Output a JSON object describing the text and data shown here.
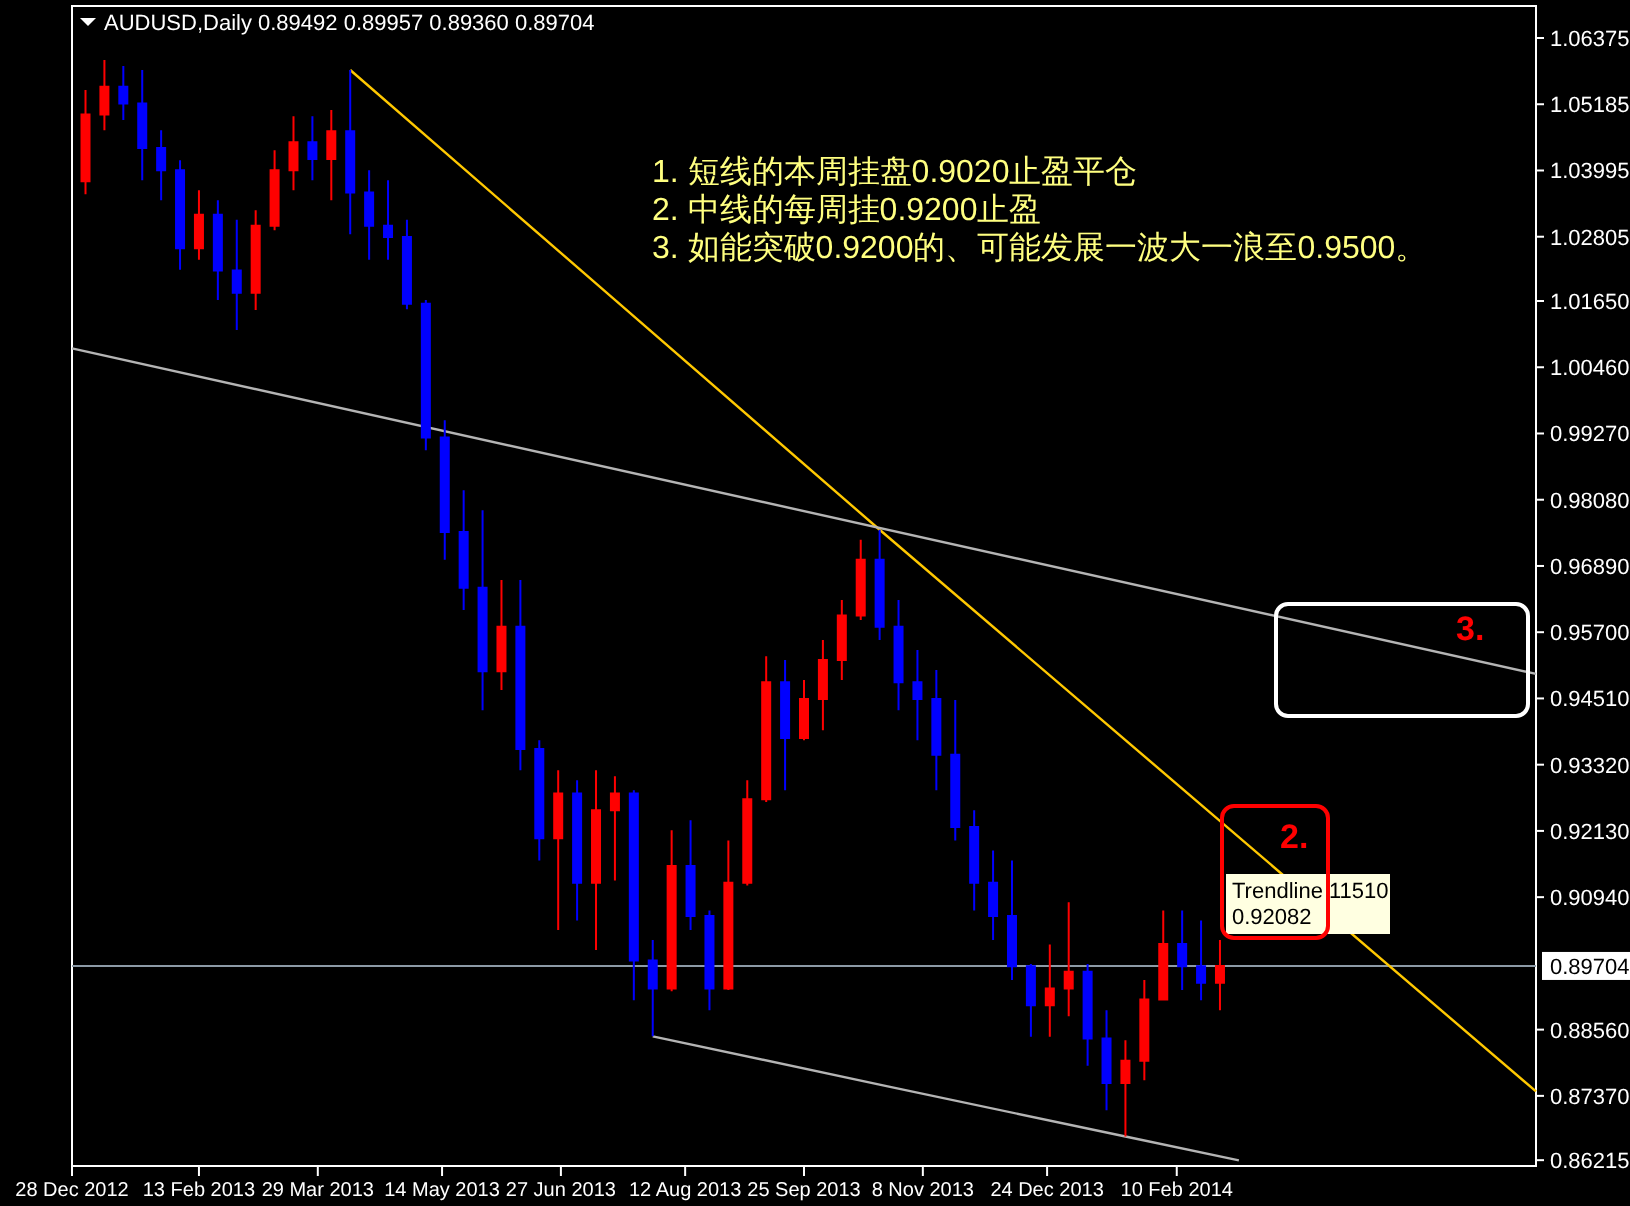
{
  "chart_data": {
    "type": "candlestick",
    "title": "AUDUSD,Daily  0.89492 0.89957 0.89360 0.89704",
    "x": [
      "2013-01-02",
      "2013-01-09",
      "2013-01-16",
      "2013-01-23",
      "2013-01-30",
      "2013-02-06",
      "2013-02-13",
      "2013-02-20",
      "2013-02-27",
      "2013-03-06",
      "2013-03-13",
      "2013-03-20",
      "2013-03-27",
      "2013-04-03",
      "2013-04-10",
      "2013-04-17",
      "2013-04-24",
      "2013-05-01",
      "2013-05-08",
      "2013-05-15",
      "2013-05-22",
      "2013-05-29",
      "2013-06-05",
      "2013-06-12",
      "2013-06-19",
      "2013-06-26",
      "2013-07-03",
      "2013-07-10",
      "2013-07-17",
      "2013-07-24",
      "2013-07-31",
      "2013-08-07",
      "2013-08-14",
      "2013-08-21",
      "2013-08-28",
      "2013-09-04",
      "2013-09-11",
      "2013-09-18",
      "2013-09-25",
      "2013-10-02",
      "2013-10-09",
      "2013-10-16",
      "2013-10-23",
      "2013-10-30",
      "2013-11-06",
      "2013-11-13",
      "2013-11-20",
      "2013-11-27",
      "2013-12-04",
      "2013-12-11",
      "2013-12-18",
      "2013-12-25",
      "2014-01-01",
      "2014-01-08",
      "2014-01-15",
      "2014-01-22",
      "2014-01-29",
      "2014-02-05",
      "2014-02-12",
      "2014-02-19",
      "2014-02-26"
    ],
    "ohlc": [
      [
        1.038,
        1.0544,
        1.0357,
        1.05
      ],
      [
        1.05,
        1.0598,
        1.0472,
        1.055
      ],
      [
        1.055,
        1.0587,
        1.049,
        1.052
      ],
      [
        1.052,
        1.058,
        1.0382,
        1.044
      ],
      [
        1.044,
        1.0472,
        1.0346,
        1.04
      ],
      [
        1.04,
        1.0418,
        1.0221,
        1.026
      ],
      [
        1.026,
        1.0364,
        1.0239,
        1.032
      ],
      [
        1.032,
        1.0346,
        1.0167,
        1.022
      ],
      [
        1.022,
        1.0311,
        1.0113,
        1.018
      ],
      [
        1.018,
        1.0328,
        1.0149,
        1.03
      ],
      [
        1.03,
        1.0436,
        1.0292,
        1.04
      ],
      [
        1.04,
        1.0497,
        1.0364,
        1.045
      ],
      [
        1.045,
        1.0497,
        1.0382,
        1.042
      ],
      [
        1.042,
        1.0508,
        1.0346,
        1.047
      ],
      [
        1.047,
        1.058,
        1.0285,
        1.036
      ],
      [
        1.036,
        1.04,
        1.0239,
        1.03
      ],
      [
        1.03,
        1.0382,
        1.0239,
        1.028
      ],
      [
        1.028,
        1.0311,
        1.015,
        1.016
      ],
      [
        1.016,
        1.0167,
        0.9897,
        0.992
      ],
      [
        0.992,
        0.9951,
        0.97,
        0.975
      ],
      [
        0.975,
        0.9825,
        0.961,
        0.965
      ],
      [
        0.965,
        0.9789,
        0.943,
        0.95
      ],
      [
        0.95,
        0.9664,
        0.9466,
        0.958
      ],
      [
        0.958,
        0.9664,
        0.9322,
        0.936
      ],
      [
        0.936,
        0.9376,
        0.916,
        0.92
      ],
      [
        0.92,
        0.9322,
        0.9035,
        0.928
      ],
      [
        0.928,
        0.9304,
        0.9052,
        0.912
      ],
      [
        0.912,
        0.9322,
        0.8999,
        0.925
      ],
      [
        0.925,
        0.9311,
        0.9124,
        0.928
      ],
      [
        0.928,
        0.9286,
        0.8909,
        0.898
      ],
      [
        0.898,
        0.9017,
        0.8844,
        0.893
      ],
      [
        0.893,
        0.9214,
        0.8925,
        0.915
      ],
      [
        0.915,
        0.9232,
        0.9035,
        0.906
      ],
      [
        0.906,
        0.907,
        0.8891,
        0.893
      ],
      [
        0.893,
        0.9196,
        0.8927,
        0.912
      ],
      [
        0.912,
        0.9304,
        0.9115,
        0.927
      ],
      [
        0.927,
        0.9527,
        0.9265,
        0.948
      ],
      [
        0.948,
        0.952,
        0.9286,
        0.938
      ],
      [
        0.938,
        0.9484,
        0.9376,
        0.945
      ],
      [
        0.945,
        0.9556,
        0.9394,
        0.952
      ],
      [
        0.952,
        0.9628,
        0.9484,
        0.96
      ],
      [
        0.96,
        0.9736,
        0.9592,
        0.97
      ],
      [
        0.97,
        0.9754,
        0.9556,
        0.958
      ],
      [
        0.958,
        0.9628,
        0.943,
        0.948
      ],
      [
        0.948,
        0.9538,
        0.9376,
        0.945
      ],
      [
        0.945,
        0.9502,
        0.9286,
        0.935
      ],
      [
        0.935,
        0.9448,
        0.9196,
        0.922
      ],
      [
        0.922,
        0.925,
        0.907,
        0.912
      ],
      [
        0.912,
        0.9178,
        0.9017,
        0.906
      ],
      [
        0.906,
        0.916,
        0.8945,
        0.897
      ],
      [
        0.897,
        0.8974,
        0.8843,
        0.89
      ],
      [
        0.89,
        0.9009,
        0.8843,
        0.893
      ],
      [
        0.893,
        0.9085,
        0.888,
        0.896
      ],
      [
        0.896,
        0.8974,
        0.8791,
        0.884
      ],
      [
        0.884,
        0.8891,
        0.8711,
        0.876
      ],
      [
        0.876,
        0.8837,
        0.8664,
        0.88
      ],
      [
        0.88,
        0.8945,
        0.8765,
        0.891
      ],
      [
        0.891,
        0.907,
        0.8909,
        0.901
      ],
      [
        0.901,
        0.907,
        0.8927,
        0.897
      ],
      [
        0.897,
        0.9052,
        0.8909,
        0.894
      ],
      [
        0.894,
        0.9017,
        0.8891,
        0.89704
      ]
    ],
    "colors": [
      "#ff0000",
      "#ff0000",
      "#0000ff",
      "#0000ff",
      "#0000ff",
      "#0000ff",
      "#ff0000",
      "#0000ff",
      "#0000ff",
      "#ff0000",
      "#ff0000",
      "#ff0000",
      "#0000ff",
      "#ff0000",
      "#0000ff",
      "#0000ff",
      "#0000ff",
      "#0000ff",
      "#0000ff",
      "#0000ff",
      "#0000ff",
      "#0000ff",
      "#ff0000",
      "#0000ff",
      "#0000ff",
      "#ff0000",
      "#0000ff",
      "#ff0000",
      "#ff0000",
      "#0000ff",
      "#0000ff",
      "#ff0000",
      "#0000ff",
      "#0000ff",
      "#ff0000",
      "#ff0000",
      "#ff0000",
      "#0000ff",
      "#ff0000",
      "#ff0000",
      "#ff0000",
      "#ff0000",
      "#0000ff",
      "#0000ff",
      "#0000ff",
      "#0000ff",
      "#0000ff",
      "#0000ff",
      "#0000ff",
      "#0000ff",
      "#0000ff",
      "#ff0000",
      "#ff0000",
      "#0000ff",
      "#0000ff",
      "#ff0000",
      "#ff0000",
      "#ff0000",
      "#0000ff",
      "#0000ff",
      "#ff0000"
    ],
    "series": [
      {
        "type": "line",
        "color": "#ffc800",
        "x": [
          "2013-04-10",
          "2013-07-17",
          "2013-10-23",
          "2014-06-23"
        ],
        "values": [
          1.058,
          1.0167,
          0.9754,
          0.8745
        ]
      },
      {
        "type": "line",
        "color": "#b4b4b4",
        "x": [
          "2012-12-28",
          "2014-06-23"
        ],
        "values": [
          1.008,
          0.9495
        ]
      },
      {
        "type": "line",
        "color": "#b4b4b4",
        "x": [
          "2013-07-31",
          "2013-10-26",
          "2014-01-22",
          "2014-03-05"
        ],
        "values": [
          0.8844,
          0.8754,
          0.8664,
          0.8621
        ]
      }
    ],
    "ref_lines": [
      {
        "axis": "y",
        "value": 0.89704,
        "label": "0.89704",
        "color": "#8c9aa6"
      }
    ],
    "xlim": [
      "2012-12-28",
      "2014-06-23"
    ],
    "xticks": [
      {
        "value": "2012-12-28",
        "label": "28 Dec 2012"
      },
      {
        "value": "2013-02-13",
        "label": "13 Feb 2013"
      },
      {
        "value": "2013-03-29",
        "label": "29 Mar 2013"
      },
      {
        "value": "2013-05-14",
        "label": "14 May 2013"
      },
      {
        "value": "2013-06-27",
        "label": "27 Jun 2013"
      },
      {
        "value": "2013-08-12",
        "label": "12 Aug 2013"
      },
      {
        "value": "2013-09-25",
        "label": "25 Sep 2013"
      },
      {
        "value": "2013-11-08",
        "label": "8 Nov 2013"
      },
      {
        "value": "2013-12-24",
        "label": "24 Dec 2013"
      },
      {
        "value": "2014-02-10",
        "label": "10 Feb 2014"
      }
    ],
    "ylim": [
      0.8611,
      1.0695
    ],
    "yticks": [
      1.06375,
      1.05185,
      1.03995,
      1.02805,
      {
        "value": 1.0165,
        "label": "1.01650"
      },
      {
        "value": 1.0046,
        "label": "1.00460"
      },
      {
        "value": 0.9927,
        "label": "0.99270"
      },
      {
        "value": 0.9808,
        "label": "0.98080"
      },
      {
        "value": 0.9689,
        "label": "0.96890"
      },
      {
        "value": 0.957,
        "label": "0.95700"
      },
      {
        "value": 0.9451,
        "label": "0.94510"
      },
      {
        "value": 0.9332,
        "label": "0.93320"
      },
      {
        "value": 0.9213,
        "label": "0.92130"
      },
      {
        "value": 0.9094,
        "label": "0.90940"
      },
      {
        "value": 0.8856,
        "label": "0.88560"
      },
      {
        "value": 0.8737,
        "label": "0.87370"
      },
      0.86215
    ],
    "grid": false,
    "annotations": [
      "1. 短线的本周挂盘0.9020止盈平仓",
      "2. 中线的每周挂0.9200止盈",
      "3. 如能突破0.9200的、可能发展一波大一浪至0.9500。",
      "2.",
      "3.",
      "Trendline 11510\n0.92082"
    ]
  }
}
